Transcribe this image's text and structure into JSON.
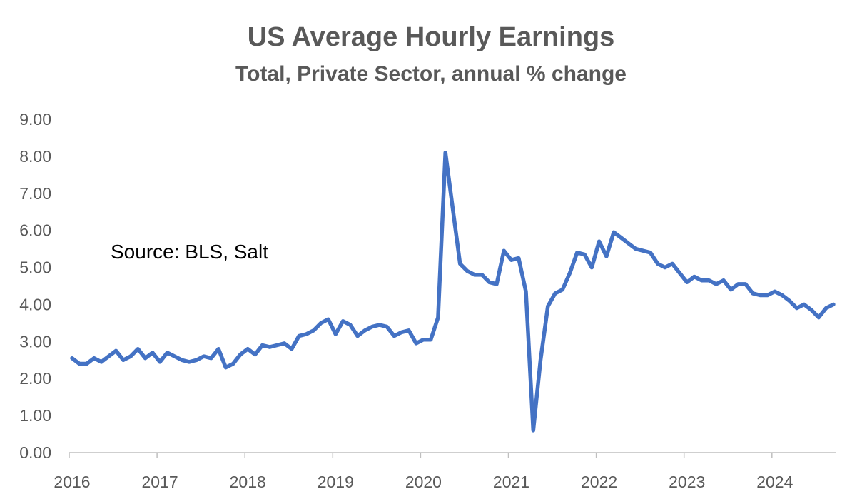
{
  "chart_data": {
    "type": "line",
    "title": "US Average Hourly Earnings",
    "subtitle": "Total, Private Sector, annual % change",
    "annotation": "Source: BLS, Salt",
    "xlabel": "",
    "ylabel": "",
    "ylim": [
      0,
      9
    ],
    "y_ticks": [
      "0.00",
      "1.00",
      "2.00",
      "3.00",
      "4.00",
      "5.00",
      "6.00",
      "7.00",
      "8.00",
      "9.00"
    ],
    "x_ticks": [
      "2016",
      "2017",
      "2018",
      "2019",
      "2020",
      "2021",
      "2022",
      "2023",
      "2024"
    ],
    "x_start": "2016-01",
    "grid": false,
    "legend": "none",
    "line_color": "#4472C4",
    "series": [
      {
        "values": [
          2.55,
          2.4,
          2.4,
          2.55,
          2.45,
          2.6,
          2.75,
          2.5,
          2.6,
          2.8,
          2.55,
          2.7,
          2.45,
          2.7,
          2.6,
          2.5,
          2.45,
          2.5,
          2.6,
          2.55,
          2.8,
          2.3,
          2.4,
          2.65,
          2.8,
          2.65,
          2.9,
          2.85,
          2.9,
          2.95,
          2.8,
          3.15,
          3.2,
          3.3,
          3.5,
          3.6,
          3.2,
          3.55,
          3.45,
          3.15,
          3.3,
          3.4,
          3.45,
          3.4,
          3.15,
          3.25,
          3.3,
          2.95,
          3.05,
          3.05,
          3.65,
          8.1,
          6.6,
          5.1,
          4.9,
          4.8,
          4.8,
          4.6,
          4.55,
          5.45,
          5.2,
          5.25,
          4.35,
          0.6,
          2.5,
          3.95,
          4.3,
          4.4,
          4.85,
          5.4,
          5.35,
          5.0,
          5.7,
          5.3,
          5.95,
          5.8,
          5.65,
          5.5,
          5.45,
          5.4,
          5.1,
          5.0,
          5.1,
          4.85,
          4.6,
          4.75,
          4.65,
          4.65,
          4.55,
          4.65,
          4.4,
          4.55,
          4.55,
          4.3,
          4.25,
          4.25,
          4.35,
          4.25,
          4.1,
          3.9,
          4.0,
          3.85,
          3.65,
          3.9,
          4.0
        ]
      }
    ]
  }
}
